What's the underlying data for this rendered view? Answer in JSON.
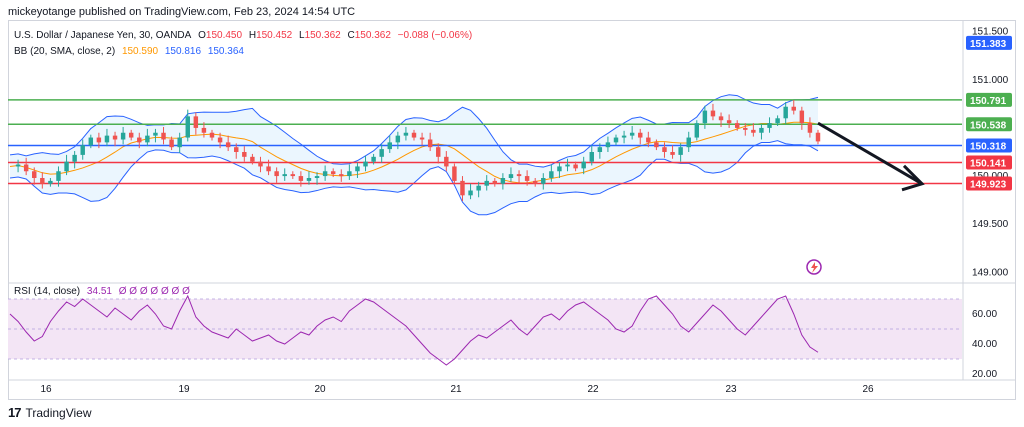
{
  "header": {
    "published": "mickeyotange published on TradingView.com, Feb 23, 2024 14:54 UTC"
  },
  "legend": {
    "symbol": "U.S. Dollar / Japanese Yen, 30, OANDA",
    "o_label": "O",
    "o": "150.450",
    "h_label": "H",
    "h": "150.452",
    "l_label": "L",
    "l": "150.362",
    "c_label": "C",
    "c": "150.362",
    "change": "−0.088 (−0.06%)",
    "bb_label": "BB (20, SMA, close, 2)",
    "bb_basis": "150.590",
    "bb_upper": "150.816",
    "bb_lower": "150.364",
    "rsi_label": "RSI (14, close)",
    "rsi_value": "34.51",
    "rsi_extra": "Ø Ø Ø Ø Ø Ø Ø"
  },
  "brand": {
    "name": "TradingView",
    "logo": "17"
  },
  "colors": {
    "bull": "#26a69a",
    "bear": "#ef5350",
    "bb_band": "#2962ff",
    "bb_basis": "#ff9800",
    "bb_fill": "#e3f2fd",
    "rsi": "#9c27b0",
    "rsi_fill": "#f3e5f5",
    "green_line": "#4caf50",
    "blue_line": "#2962ff",
    "red_line": "#f23645",
    "arrow": "#131722"
  },
  "chart_data": {
    "type": "candlestick",
    "price_axis": {
      "ticks": [
        "151.500",
        "151.000",
        "150.500",
        "150.000",
        "149.500",
        "149.000"
      ],
      "range": [
        148.9,
        151.6
      ]
    },
    "rsi_axis": {
      "ticks": [
        "60.00",
        "40.00",
        "20.00"
      ],
      "range": [
        16,
        80
      ],
      "bands": [
        30,
        70
      ]
    },
    "x_ticks": [
      "16",
      "19",
      "20",
      "21",
      "22",
      "23",
      "26"
    ],
    "badges": [
      {
        "value": "151.383",
        "color": "#2962ff"
      },
      {
        "value": "150.791",
        "color": "#4caf50"
      },
      {
        "value": "150.538",
        "color": "#4caf50"
      },
      {
        "value": "150.318",
        "color": "#2962ff"
      },
      {
        "value": "150.141",
        "color": "#f23645"
      },
      {
        "value": "149.923",
        "color": "#f23645"
      }
    ],
    "horizontal_lines": [
      {
        "value": 150.791,
        "color": "#4caf50"
      },
      {
        "value": 150.538,
        "color": "#4caf50"
      },
      {
        "value": 150.318,
        "color": "#2962ff"
      },
      {
        "value": 150.141,
        "color": "#f23645"
      },
      {
        "value": 149.923,
        "color": "#f23645"
      }
    ],
    "close_path": [
      150.1,
      150.12,
      150.05,
      149.98,
      149.92,
      149.95,
      150.05,
      150.15,
      150.22,
      150.32,
      150.4,
      150.35,
      150.42,
      150.38,
      150.45,
      150.4,
      150.35,
      150.42,
      150.45,
      150.38,
      150.3,
      150.4,
      150.62,
      150.5,
      150.45,
      150.4,
      150.35,
      150.3,
      150.25,
      150.2,
      150.15,
      150.1,
      150.05,
      150.0,
      150.02,
      150.0,
      149.95,
      149.98,
      150.0,
      150.05,
      150.02,
      150.0,
      150.05,
      150.1,
      150.15,
      150.2,
      150.28,
      150.35,
      150.42,
      150.45,
      150.4,
      150.38,
      150.3,
      150.2,
      150.1,
      149.95,
      149.8,
      149.85,
      149.9,
      149.95,
      149.92,
      149.98,
      150.02,
      150.0,
      149.95,
      149.92,
      149.98,
      150.05,
      150.1,
      150.12,
      150.08,
      150.15,
      150.25,
      150.3,
      150.35,
      150.4,
      150.42,
      150.45,
      150.4,
      150.35,
      150.3,
      150.25,
      150.22,
      150.3,
      150.4,
      150.55,
      150.68,
      150.62,
      150.58,
      150.55,
      150.5,
      150.48,
      150.45,
      150.5,
      150.55,
      150.6,
      150.72,
      150.68,
      150.55,
      150.45,
      150.36
    ],
    "rsi_values": [
      60,
      55,
      48,
      42,
      45,
      55,
      62,
      68,
      65,
      70,
      66,
      62,
      58,
      64,
      60,
      56,
      62,
      66,
      60,
      52,
      50,
      62,
      72,
      58,
      52,
      48,
      46,
      44,
      50,
      46,
      42,
      44,
      46,
      42,
      40,
      44,
      48,
      46,
      52,
      56,
      58,
      55,
      62,
      66,
      70,
      68,
      64,
      60,
      56,
      52,
      46,
      40,
      34,
      30,
      26,
      30,
      36,
      42,
      46,
      44,
      48,
      52,
      56,
      50,
      46,
      52,
      58,
      60,
      56,
      62,
      66,
      68,
      64,
      60,
      56,
      50,
      48,
      52,
      62,
      70,
      72,
      66,
      60,
      52,
      48,
      54,
      60,
      66,
      62,
      56,
      50,
      46,
      52,
      58,
      64,
      70,
      72,
      60,
      46,
      38,
      34.51
    ],
    "arrow": {
      "from": [
        23.55,
        150.55
      ],
      "to": [
        26.4,
        149.92
      ]
    },
    "marker": "lightning-icon"
  }
}
